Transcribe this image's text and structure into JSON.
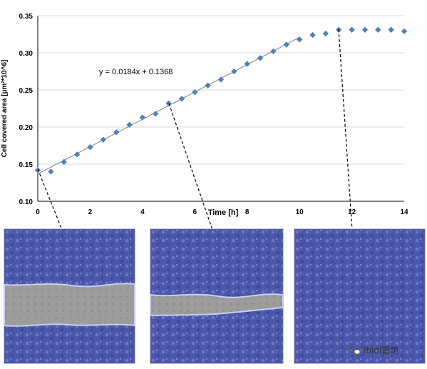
{
  "chart_data": {
    "type": "scatter",
    "xlabel": "Time [h]",
    "ylabel": "Cell covered area [µm²*10^6]",
    "xlim": [
      0,
      14
    ],
    "ylim": [
      0.1,
      0.35
    ],
    "x_ticks": [
      "0",
      "2",
      "4",
      "6",
      "8",
      "10",
      "12",
      "14"
    ],
    "y_ticks": [
      "0.10",
      "0.15",
      "0.20",
      "0.25",
      "0.30",
      "0.35"
    ],
    "grid": "horizontal",
    "equation": "y = 0.0184x + 0.1368",
    "trendline": {
      "slope": 0.0184,
      "intercept": 0.1368,
      "x_range": [
        0,
        10
      ]
    },
    "series": [
      {
        "marker": "diamond",
        "color": "#4f81bd",
        "points": [
          [
            0,
            0.142
          ],
          [
            0.5,
            0.14
          ],
          [
            1,
            0.153
          ],
          [
            1.5,
            0.163
          ],
          [
            2,
            0.173
          ],
          [
            2.5,
            0.183
          ],
          [
            3,
            0.193
          ],
          [
            3.5,
            0.203
          ],
          [
            4,
            0.213
          ],
          [
            4.5,
            0.218
          ],
          [
            5,
            0.232
          ],
          [
            5.5,
            0.238
          ],
          [
            6,
            0.247
          ],
          [
            6.5,
            0.256
          ],
          [
            7,
            0.264
          ],
          [
            7.5,
            0.275
          ],
          [
            8,
            0.285
          ],
          [
            8.5,
            0.293
          ],
          [
            9,
            0.302
          ],
          [
            9.5,
            0.311
          ],
          [
            10,
            0.318
          ],
          [
            10.5,
            0.324
          ],
          [
            11,
            0.326
          ],
          [
            11.5,
            0.331
          ],
          [
            12,
            0.331
          ],
          [
            12.5,
            0.331
          ],
          [
            13,
            0.331
          ],
          [
            13.5,
            0.331
          ],
          [
            14,
            0.329
          ]
        ]
      }
    ],
    "image_links": [
      {
        "point_x": 0,
        "point_y": 0.142
      },
      {
        "point_x": 5,
        "point_y": 0.232
      },
      {
        "point_x": 11.5,
        "point_y": 0.331
      }
    ]
  },
  "colors": {
    "cells": "#4a56a8",
    "gap": "#9a9a9a",
    "edge": "#c9cff0",
    "grid": "#d9d9d9"
  },
  "watermark": {
    "text": "ibidi雷萌",
    "icon": "wechat-icon"
  }
}
